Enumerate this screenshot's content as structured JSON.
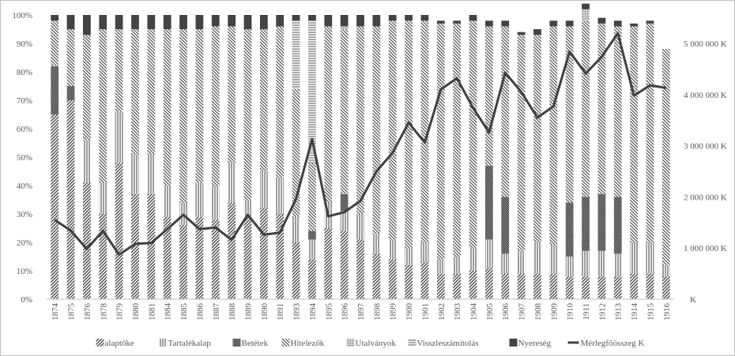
{
  "chart_data": {
    "type": "bar",
    "stacked": true,
    "percent_stacked": true,
    "categories": [
      "1874",
      "1875",
      "1876",
      "1878",
      "1879",
      "1880",
      "1881",
      "1884",
      "1885",
      "1886",
      "1887",
      "1888",
      "1889",
      "1890",
      "1891",
      "1893",
      "1894",
      "1895",
      "1896",
      "1897",
      "1898",
      "1899",
      "1900",
      "1901",
      "1902",
      "1903",
      "1904",
      "1905",
      "1906",
      "1907",
      "1908",
      "1909",
      "1910",
      "1911",
      "1912",
      "1913",
      "1914",
      "1915",
      "1916"
    ],
    "series": [
      {
        "name": "alaptőke",
        "pattern": "diag-dense",
        "values": [
          65,
          70,
          41,
          30,
          48,
          37,
          37,
          29,
          26,
          29,
          28,
          34,
          29,
          32,
          30,
          20,
          14,
          25,
          24,
          21,
          16,
          14,
          12,
          13,
          9,
          9,
          10,
          11,
          9,
          9,
          9,
          9,
          8,
          8,
          8,
          8,
          9,
          9,
          8
        ]
      },
      {
        "name": "Tartalékalap",
        "pattern": "vertical",
        "values": [
          0,
          0,
          15,
          11,
          18,
          14,
          14,
          11,
          8,
          12,
          12,
          14,
          6,
          13,
          13,
          9,
          7,
          9,
          7,
          9,
          7,
          7,
          6,
          7,
          5,
          6,
          8,
          10,
          7,
          8,
          11,
          10,
          7,
          9,
          9,
          8,
          11,
          11,
          4
        ]
      },
      {
        "name": "Betétek",
        "pattern": "dots",
        "values": [
          17,
          5,
          0,
          0,
          0,
          0,
          0,
          0,
          0,
          0,
          0,
          0,
          0,
          0,
          0,
          0,
          3,
          0,
          6,
          0,
          0,
          0,
          0,
          0,
          0,
          0,
          0,
          26,
          20,
          0,
          0,
          0,
          19,
          19,
          20,
          20,
          0,
          0,
          0
        ]
      },
      {
        "name": "Hitelezők",
        "pattern": "back-diag",
        "values": [
          16,
          20,
          37,
          54,
          29,
          44,
          44,
          55,
          61,
          54,
          56,
          48,
          60,
          50,
          53,
          45,
          24,
          62,
          58,
          66,
          73,
          77,
          80,
          78,
          83,
          82,
          80,
          49,
          60,
          76,
          73,
          77,
          62,
          62,
          60,
          60,
          76,
          77,
          76
        ]
      },
      {
        "name": "Utalványok",
        "pattern": "grid",
        "values": [
          0,
          0,
          0,
          0,
          0,
          0,
          0,
          0,
          0,
          0,
          0,
          0,
          0,
          0,
          0,
          0,
          0,
          0,
          1,
          0,
          0,
          0,
          0,
          0,
          0,
          0,
          0,
          0,
          0,
          0,
          0,
          0,
          0,
          4,
          0,
          0,
          0,
          0,
          0
        ]
      },
      {
        "name": "Visszleszámítolás",
        "pattern": "horizontal",
        "values": [
          0,
          0,
          0,
          0,
          0,
          0,
          0,
          0,
          0,
          0,
          0,
          0,
          0,
          0,
          0,
          24,
          50,
          0,
          0,
          0,
          0,
          0,
          0,
          0,
          0,
          0,
          0,
          0,
          0,
          0,
          0,
          0,
          0,
          0,
          0,
          0,
          0,
          0,
          0
        ]
      },
      {
        "name": "Nyereség",
        "pattern": "solid-dark",
        "values": [
          2,
          5,
          7,
          5,
          5,
          5,
          5,
          5,
          5,
          5,
          4,
          4,
          5,
          5,
          4,
          2,
          2,
          4,
          4,
          4,
          4,
          2,
          2,
          2,
          1,
          1,
          2,
          2,
          2,
          1,
          2,
          2,
          2,
          2,
          2,
          2,
          1,
          1,
          0
        ]
      },
      {
        "name": "Mérlegfőösszeg K",
        "type": "line",
        "axis": "right",
        "values": [
          1550000,
          1340000,
          980000,
          1340000,
          870000,
          1080000,
          1100000,
          1370000,
          1650000,
          1370000,
          1400000,
          1160000,
          1650000,
          1260000,
          1300000,
          1960000,
          3130000,
          1620000,
          1700000,
          1920000,
          2500000,
          2860000,
          3450000,
          3060000,
          4100000,
          4320000,
          3740000,
          3260000,
          4430000,
          4050000,
          3550000,
          3770000,
          4840000,
          4410000,
          4740000,
          5200000,
          3980000,
          4180000,
          4130000
        ]
      }
    ],
    "left_axis": {
      "min": 0,
      "max": 100,
      "ticks": [
        "0%",
        "10%",
        "20%",
        "30%",
        "40%",
        "50%",
        "60%",
        "70%",
        "80%",
        "90%",
        "100%"
      ]
    },
    "right_axis": {
      "min": 0,
      "max": 5555556,
      "ticks": [
        "1 000 000 K",
        "2 000 000 K",
        "3 000 000 K",
        "4 000 000 K",
        "5 000 000 K"
      ],
      "unit_label": "K"
    },
    "grid": false,
    "legend_position": "bottom"
  }
}
